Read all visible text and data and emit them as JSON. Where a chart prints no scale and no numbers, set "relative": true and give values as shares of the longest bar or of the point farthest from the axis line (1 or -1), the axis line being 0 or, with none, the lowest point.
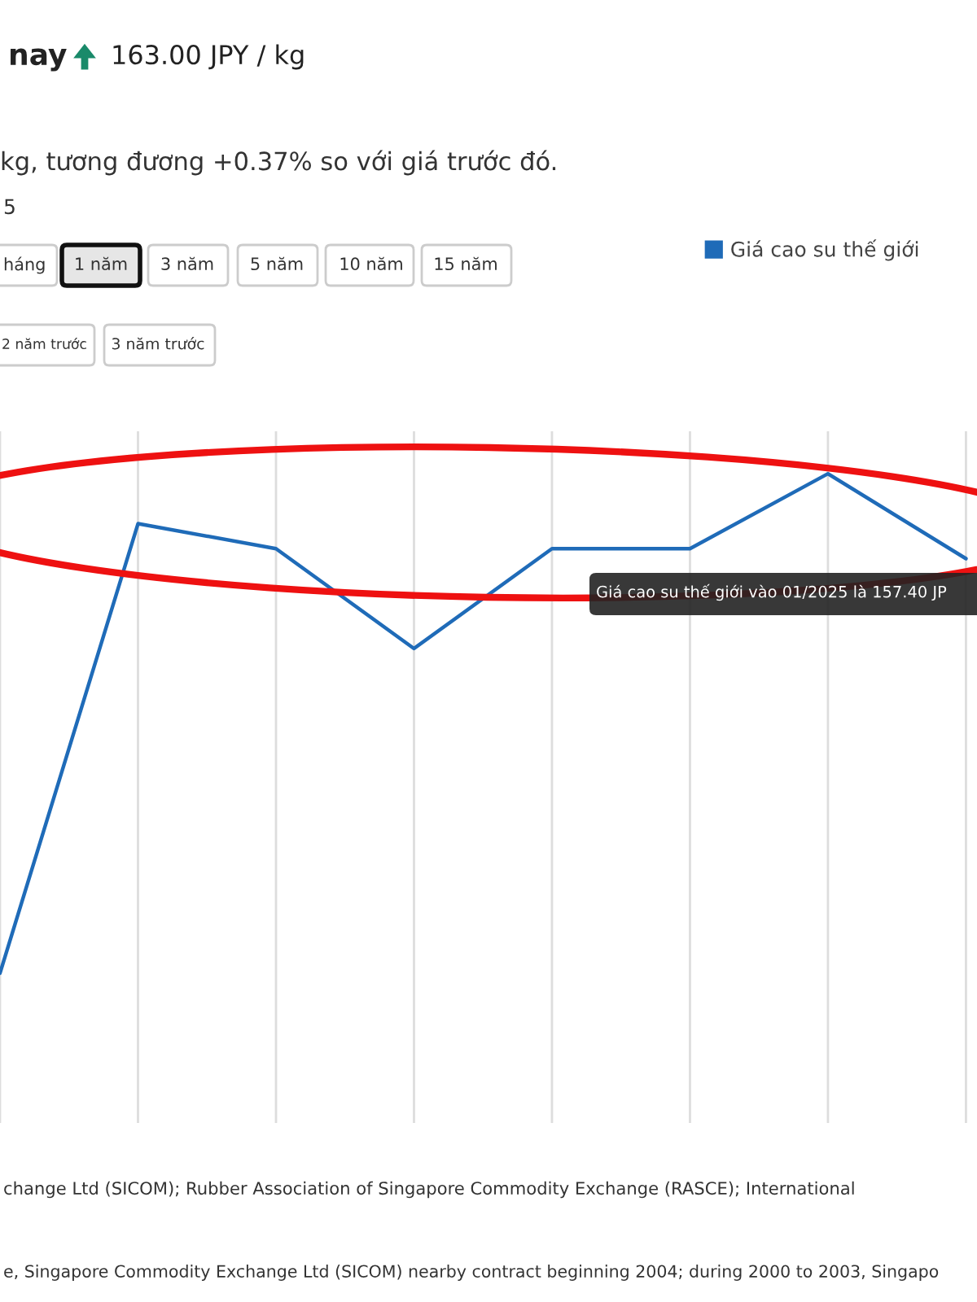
{
  "chart_data": {
    "type": "line",
    "relative": true,
    "categories": [
      null,
      null,
      null,
      null,
      null,
      null,
      null,
      null
    ],
    "series": [
      {
        "name": "Giá cao su thế giới",
        "color": "#1f6bb8",
        "values": [
          0,
          0.9,
          0.85,
          0.65,
          0.85,
          0.85,
          1,
          0.83
        ]
      }
    ],
    "grid": "x",
    "legend": "top right",
    "marker": "none",
    "line_style": "solid",
    "annotations": [
      "nay",
      "163.00 JPY / kg",
      "kg, tương đương +0.37% so với giá trước đó.",
      "5",
      "háng",
      "1 năm",
      "3 năm",
      "5 năm",
      "10 năm",
      "15 năm",
      "2 năm trước",
      "3 năm trước",
      "change Ltd (SICOM); Rubber Association of Singapore Commodity Exchange (RASCE); International",
      "e, Singapore Commodity Exchange Ltd (SICOM) nearby contract beginning 2004; during 2000 to 2003, Singapo",
      "Giá cao su thế giới vào 01/2025 là 157.40 JP"
    ]
  }
}
